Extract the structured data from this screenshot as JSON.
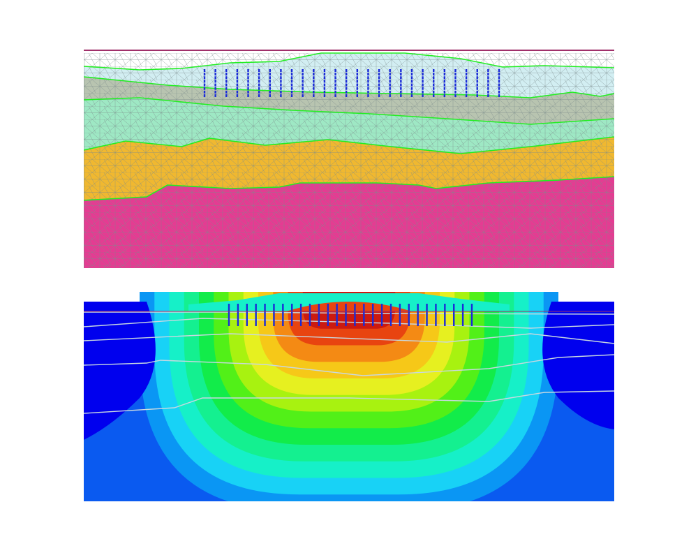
{
  "figure": {
    "description_panels": [
      "finite-element-mesh",
      "stress-contour"
    ],
    "colors": {
      "background": "#ffffff",
      "ground_line": "#a0306a",
      "layer_boundary": "#22ee22",
      "mesh_line": "#7a8a8a",
      "pile_marker": "#1a2ad8",
      "layer_1": "#d2eef2",
      "layer_2": "#b8c4b0",
      "layer_3": "#9ee8c4",
      "layer_4": "#f0b830",
      "layer_5": "#e43c92",
      "contour_scale": [
        "#0000ee",
        "#0a5af0",
        "#0a96f4",
        "#18d2f6",
        "#16f0c8",
        "#14f090",
        "#12ec4a",
        "#52f018",
        "#a8f210",
        "#e6f020",
        "#f6c818",
        "#f48a14",
        "#e84410",
        "#cc1a10"
      ]
    },
    "mesh_panel": {
      "layers": [
        "layer-1",
        "layer-2",
        "layer-3",
        "layer-4",
        "layer-5"
      ],
      "pile_group": {
        "columns": 28,
        "rows": 8
      }
    },
    "contour_panel": {
      "levels": 14,
      "pile_group": {
        "columns": 28,
        "rows": 8
      }
    }
  }
}
